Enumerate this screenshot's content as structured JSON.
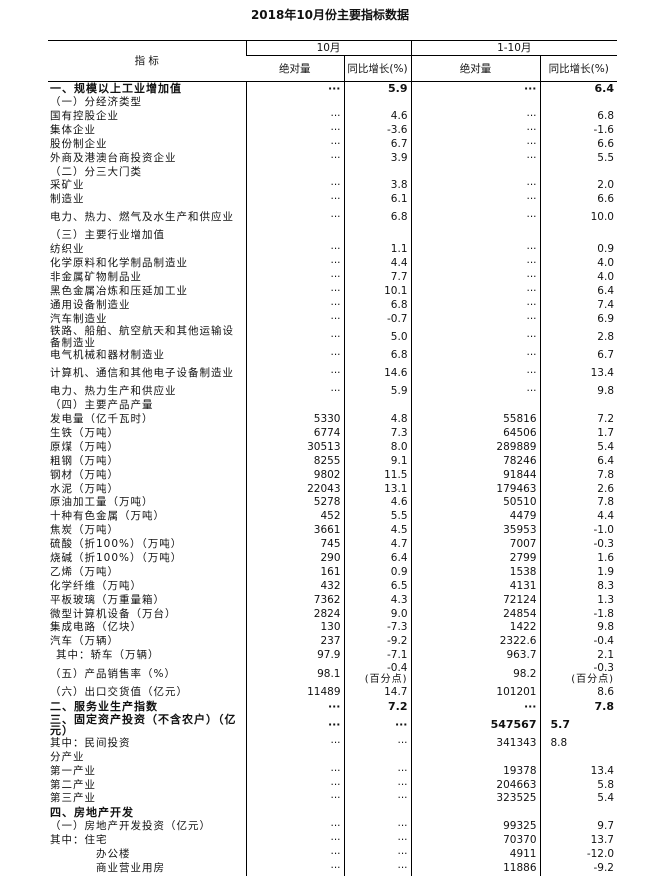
{
  "title": "2018年10月份主要指标数据",
  "header": {
    "indicator": "指 标",
    "month": "10月",
    "ytd": "1-10月",
    "abs": "绝对量",
    "yoy": "同比增长(%)"
  },
  "rows": [
    {
      "label": "一、规模以上工业增加值",
      "m_abs": "···",
      "m_yoy": "5.9",
      "y_abs": "···",
      "y_yoy": "6.4",
      "bold": true
    },
    {
      "label": "（一）分经济类型",
      "indent": 0
    },
    {
      "label": "国有控股企业",
      "m_abs": "···",
      "m_yoy": "4.6",
      "y_abs": "···",
      "y_yoy": "6.8"
    },
    {
      "label": "集体企业",
      "m_abs": "···",
      "m_yoy": "-3.6",
      "y_abs": "···",
      "y_yoy": "-1.6"
    },
    {
      "label": "股份制企业",
      "m_abs": "···",
      "m_yoy": "6.7",
      "y_abs": "···",
      "y_yoy": "6.6"
    },
    {
      "label": "外商及港澳台商投资企业",
      "m_abs": "···",
      "m_yoy": "3.9",
      "y_abs": "···",
      "y_yoy": "5.5"
    },
    {
      "label": "（二）分三大门类"
    },
    {
      "label": "采矿业",
      "m_abs": "···",
      "m_yoy": "3.8",
      "y_abs": "···",
      "y_yoy": "2.0"
    },
    {
      "label": "制造业",
      "m_abs": "···",
      "m_yoy": "6.1",
      "y_abs": "···",
      "y_yoy": "6.6"
    },
    {
      "label": "电力、热力、燃气及水生产和供应业",
      "m_abs": "···",
      "m_yoy": "6.8",
      "y_abs": "···",
      "y_yoy": "10.0",
      "tall": true
    },
    {
      "label": "（三）主要行业增加值"
    },
    {
      "label": "纺织业",
      "m_abs": "···",
      "m_yoy": "1.1",
      "y_abs": "···",
      "y_yoy": "0.9"
    },
    {
      "label": "化学原料和化学制品制造业",
      "m_abs": "···",
      "m_yoy": "4.4",
      "y_abs": "···",
      "y_yoy": "4.0"
    },
    {
      "label": "非金属矿物制品业",
      "m_abs": "···",
      "m_yoy": "7.7",
      "y_abs": "···",
      "y_yoy": "4.0"
    },
    {
      "label": "黑色金属冶炼和压延加工业",
      "m_abs": "···",
      "m_yoy": "10.1",
      "y_abs": "···",
      "y_yoy": "6.4"
    },
    {
      "label": "通用设备制造业",
      "m_abs": "···",
      "m_yoy": "6.8",
      "y_abs": "···",
      "y_yoy": "7.4"
    },
    {
      "label": "汽车制造业",
      "m_abs": "···",
      "m_yoy": "-0.7",
      "y_abs": "···",
      "y_yoy": "6.9"
    },
    {
      "label": "铁路、船舶、航空航天和其他运输设备制造业",
      "m_abs": "···",
      "m_yoy": "5.0",
      "y_abs": "···",
      "y_yoy": "2.8",
      "tall": true
    },
    {
      "label": "电气机械和器材制造业",
      "m_abs": "···",
      "m_yoy": "6.8",
      "y_abs": "···",
      "y_yoy": "6.7"
    },
    {
      "label": "计算机、通信和其他电子设备制造业",
      "m_abs": "···",
      "m_yoy": "14.6",
      "y_abs": "···",
      "y_yoy": "13.4",
      "tall": true
    },
    {
      "label": "电力、热力生产和供应业",
      "m_abs": "···",
      "m_yoy": "5.9",
      "y_abs": "···",
      "y_yoy": "9.8"
    },
    {
      "label": "（四）主要产品产量"
    },
    {
      "label": "发电量（亿千瓦时）",
      "m_abs": "5330",
      "m_yoy": "4.8",
      "y_abs": "55816",
      "y_yoy": "7.2"
    },
    {
      "label": "生铁（万吨）",
      "m_abs": "6774",
      "m_yoy": "7.3",
      "y_abs": "64506",
      "y_yoy": "1.7"
    },
    {
      "label": "原煤（万吨）",
      "m_abs": "30513",
      "m_yoy": "8.0",
      "y_abs": "289889",
      "y_yoy": "5.4"
    },
    {
      "label": "粗钢（万吨）",
      "m_abs": "8255",
      "m_yoy": "9.1",
      "y_abs": "78246",
      "y_yoy": "6.4"
    },
    {
      "label": "钢材（万吨）",
      "m_abs": "9802",
      "m_yoy": "11.5",
      "y_abs": "91844",
      "y_yoy": "7.8"
    },
    {
      "label": "水泥（万吨）",
      "m_abs": "22043",
      "m_yoy": "13.1",
      "y_abs": "179463",
      "y_yoy": "2.6"
    },
    {
      "label": "原油加工量（万吨）",
      "m_abs": "5278",
      "m_yoy": "4.6",
      "y_abs": "50510",
      "y_yoy": "7.8"
    },
    {
      "label": "十种有色金属（万吨）",
      "m_abs": "452",
      "m_yoy": "5.5",
      "y_abs": "4479",
      "y_yoy": "4.4"
    },
    {
      "label": "焦炭（万吨）",
      "m_abs": "3661",
      "m_yoy": "4.5",
      "y_abs": "35953",
      "y_yoy": "-1.0"
    },
    {
      "label": "硫酸（折100%）（万吨）",
      "m_abs": "745",
      "m_yoy": "4.7",
      "y_abs": "7007",
      "y_yoy": "-0.3"
    },
    {
      "label": "烧碱（折100%）（万吨）",
      "m_abs": "290",
      "m_yoy": "6.4",
      "y_abs": "2799",
      "y_yoy": "1.6"
    },
    {
      "label": "乙烯（万吨）",
      "m_abs": "161",
      "m_yoy": "0.9",
      "y_abs": "1538",
      "y_yoy": "1.9"
    },
    {
      "label": "化学纤维（万吨）",
      "m_abs": "432",
      "m_yoy": "6.5",
      "y_abs": "4131",
      "y_yoy": "8.3"
    },
    {
      "label": "平板玻璃（万重量箱）",
      "m_abs": "7362",
      "m_yoy": "4.3",
      "y_abs": "72124",
      "y_yoy": "1.3"
    },
    {
      "label": "微型计算机设备（万台）",
      "m_abs": "2824",
      "m_yoy": "9.0",
      "y_abs": "24854",
      "y_yoy": "-1.8"
    },
    {
      "label": "集成电路（亿块）",
      "m_abs": "130",
      "m_yoy": "-7.3",
      "y_abs": "1422",
      "y_yoy": "9.8"
    },
    {
      "label": "汽车（万辆）",
      "m_abs": "237",
      "m_yoy": "-9.2",
      "y_abs": "2322.6",
      "y_yoy": "-0.4"
    },
    {
      "label": "其中：轿车（万辆）",
      "m_abs": "97.9",
      "m_yoy": "-7.1",
      "y_abs": "963.7",
      "y_yoy": "2.1",
      "indent": 1
    },
    {
      "label": "（五）产品销售率（%）",
      "m_abs": "98.1",
      "m_yoy": "-0.4",
      "m_note": "(百分点)",
      "y_abs": "98.2",
      "y_yoy": "-0.3",
      "y_note": "(百分点)",
      "tall": true
    },
    {
      "label": "（六）出口交货值（亿元）",
      "m_abs": "11489",
      "m_yoy": "14.7",
      "y_abs": "101201",
      "y_yoy": "8.6"
    },
    {
      "label": "二、服务业生产指数",
      "m_abs": "···",
      "m_yoy": "7.2",
      "y_abs": "···",
      "y_yoy": "7.8",
      "bold": true
    },
    {
      "label": "三、固定资产投资（不含农户）（亿元）",
      "m_abs": "···",
      "m_yoy": "···",
      "y_abs": "547567",
      "y_yoy": "5.7",
      "bold": true,
      "tall": true,
      "yoy_left": true
    },
    {
      "label": "其中：民间投资",
      "m_abs": "···",
      "m_yoy": "···",
      "y_abs": "341343",
      "y_yoy": "8.8",
      "yoy_left": true
    },
    {
      "label": "分产业"
    },
    {
      "label": "第一产业",
      "m_abs": "···",
      "m_yoy": "···",
      "y_abs": "19378",
      "y_yoy": "13.4"
    },
    {
      "label": "第二产业",
      "m_abs": "···",
      "m_yoy": "···",
      "y_abs": "204663",
      "y_yoy": "5.8"
    },
    {
      "label": "第三产业",
      "m_abs": "···",
      "m_yoy": "···",
      "y_abs": "323525",
      "y_yoy": "5.4"
    },
    {
      "label": "四、房地产开发",
      "bold": true
    },
    {
      "label": "（一）房地产开发投资（亿元）",
      "m_abs": "···",
      "m_yoy": "···",
      "y_abs": "99325",
      "y_yoy": "9.7"
    },
    {
      "label": "其中：住宅",
      "m_abs": "···",
      "m_yoy": "···",
      "y_abs": "70370",
      "y_yoy": "13.7"
    },
    {
      "label": "办公楼",
      "m_abs": "···",
      "m_yoy": "···",
      "y_abs": "4911",
      "y_yoy": "-12.0",
      "indent": 2
    },
    {
      "label": "商业营业用房",
      "m_abs": "···",
      "m_yoy": "···",
      "y_abs": "11886",
      "y_yoy": "-9.2",
      "indent": 2
    }
  ]
}
